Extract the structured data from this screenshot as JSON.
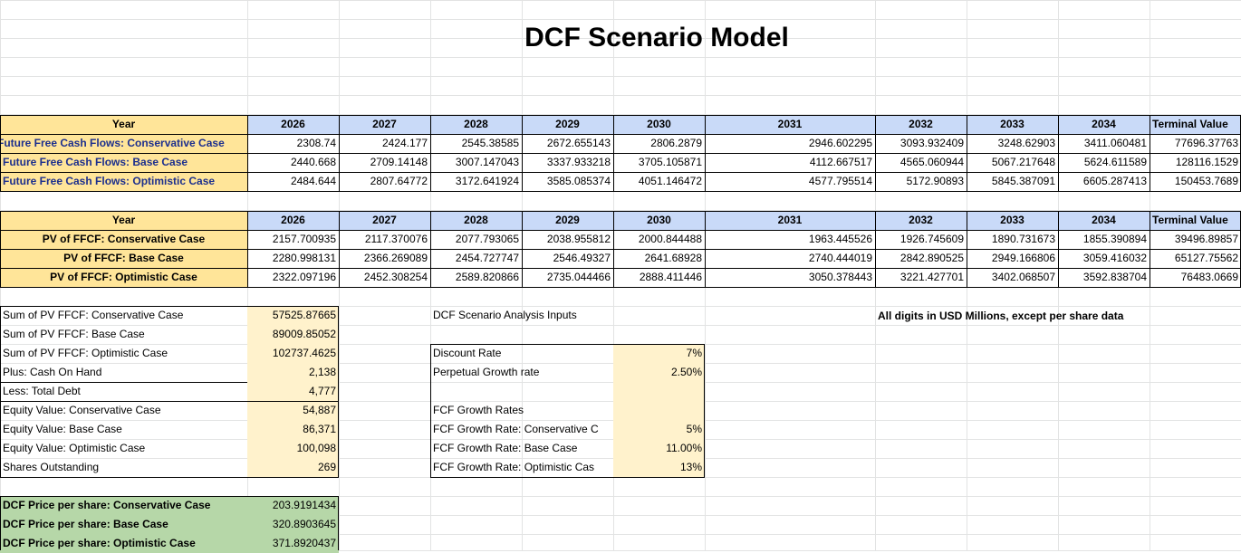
{
  "title": "DCF Scenario Model",
  "fcf_table": {
    "year_label": "Year",
    "years": [
      "2026",
      "2027",
      "2028",
      "2029",
      "2030",
      "2031",
      "2032",
      "2033",
      "2034",
      "Terminal Value"
    ],
    "rows": [
      {
        "label": "Future Free Cash Flows: Conservative Case",
        "values": [
          "2308.74",
          "2424.177",
          "2545.38585",
          "2672.655143",
          "2806.2879",
          "2946.602295",
          "3093.932409",
          "3248.62903",
          "3411.060481",
          "77696.37763"
        ]
      },
      {
        "label": "Future Free Cash Flows: Base Case",
        "values": [
          "2440.668",
          "2709.14148",
          "3007.147043",
          "3337.933218",
          "3705.105871",
          "4112.667517",
          "4565.060944",
          "5067.217648",
          "5624.611589",
          "128116.1529"
        ]
      },
      {
        "label": "Future Free Cash Flows:  Optimistic Case",
        "values": [
          "2484.644",
          "2807.64772",
          "3172.641924",
          "3585.085374",
          "4051.146472",
          "4577.795514",
          "5172.90893",
          "5845.387091",
          "6605.287413",
          "150453.7689"
        ]
      }
    ]
  },
  "pv_table": {
    "year_label": "Year",
    "years": [
      "2026",
      "2027",
      "2028",
      "2029",
      "2030",
      "2031",
      "2032",
      "2033",
      "2034",
      "Terminal Value"
    ],
    "rows": [
      {
        "label": "PV of FFCF: Conservative Case",
        "values": [
          "2157.700935",
          "2117.370076",
          "2077.793065",
          "2038.955812",
          "2000.844488",
          "1963.445526",
          "1926.745609",
          "1890.731673",
          "1855.390894",
          "39496.89857"
        ]
      },
      {
        "label": "PV of FFCF: Base Case",
        "values": [
          "2280.998131",
          "2366.269089",
          "2454.727747",
          "2546.49327",
          "2641.68928",
          "2740.444019",
          "2842.890525",
          "2949.166806",
          "3059.416032",
          "65127.75562"
        ]
      },
      {
        "label": "PV of FFCF: Optimistic Case",
        "values": [
          "2322.097196",
          "2452.308254",
          "2589.820866",
          "2735.044466",
          "2888.411446",
          "3050.378443",
          "3221.427701",
          "3402.068507",
          "3592.838704",
          "76483.0669"
        ]
      }
    ]
  },
  "summary": [
    {
      "label": "Sum of PV FFCF: Conservative Case",
      "value": "57525.87665"
    },
    {
      "label": "Sum of PV FFCF: Base Case",
      "value": "89009.85052"
    },
    {
      "label": "Sum of PV FFCF: Optimistic Case",
      "value": "102737.4625"
    },
    {
      "label": "Plus: Cash On Hand",
      "value": "2,138"
    },
    {
      "label": "Less: Total Debt",
      "value": "4,777"
    },
    {
      "label": "Equity Value: Conservative Case",
      "value": "54,887"
    },
    {
      "label": "Equity Value: Base Case",
      "value": "86,371"
    },
    {
      "label": "Equity Value: Optimistic Case",
      "value": "100,098"
    },
    {
      "label": "Shares Outstanding",
      "value": "269"
    }
  ],
  "price_per_share": [
    {
      "label": "DCF Price per share: Conservative Case",
      "value": "203.9191434"
    },
    {
      "label": "DCF Price per share: Base Case",
      "value": "320.8903645"
    },
    {
      "label": "DCF Price per share: Optimistic Case",
      "value": "371.8920437"
    }
  ],
  "inputs": {
    "title": "DCF Scenario Analysis Inputs",
    "rows": [
      {
        "label": "Discount Rate",
        "value": "7%"
      },
      {
        "label": "Perpetual Growth rate",
        "value": "2.50%"
      },
      {
        "label": "",
        "value": ""
      },
      {
        "label": "FCF Growth Rates",
        "value": ""
      },
      {
        "label": "FCF Growth Rate: Conservative C",
        "value": "5%"
      },
      {
        "label": "FCF Growth Rate: Base Case",
        "value": "11.00%"
      },
      {
        "label": "FCF Growth Rate: Optimistic Cas",
        "value": "13%"
      }
    ]
  },
  "note": "All digits in USD Millions, except per share data",
  "colors": {
    "gold": "#ffe599",
    "blue": "#c9daf8",
    "cream": "#fff2cc",
    "green": "#b6d7a8",
    "gridline": "#e2e3e3"
  }
}
